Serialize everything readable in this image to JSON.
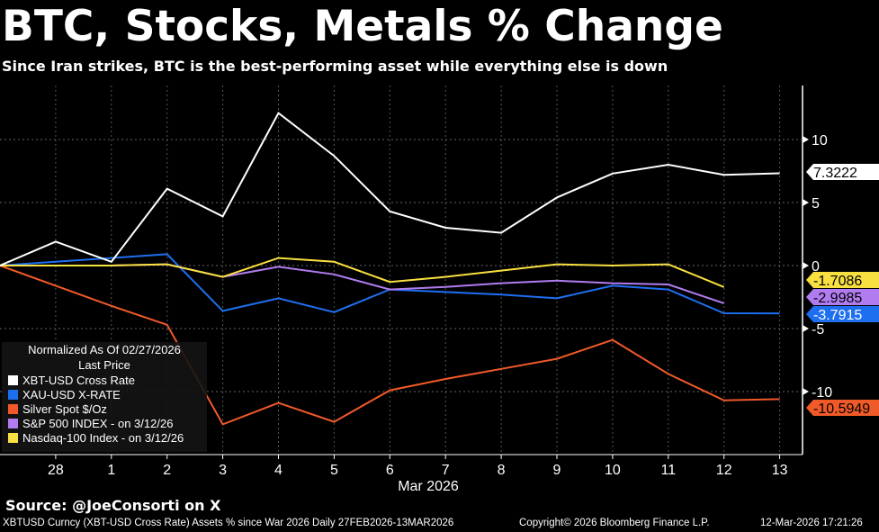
{
  "title": "BTC, Stocks, Metals % Change",
  "subtitle": "Since Iran strikes, BTC is the best-performing asset while everything else is down",
  "source": "Source: @JoeConsorti on X",
  "footer": {
    "left": "XBTUSD Curncy (XBT-USD Cross Rate) Assets % since War 2026 Daily 27FEB2026-13MAR2026",
    "copyright": "Copyright© 2026 Bloomberg Finance L.P.",
    "timestamp": "12-Mar-2026 17:21:26"
  },
  "legend": {
    "header1": "Normalized As Of 02/27/2026",
    "header2": "Last Price"
  },
  "chart_data": {
    "type": "line",
    "x": [
      "27",
      "28",
      "1",
      "2",
      "3",
      "4",
      "5",
      "6",
      "7",
      "8",
      "9",
      "10",
      "11",
      "12",
      "13"
    ],
    "x_tick_labels": [
      "28",
      "1",
      "2",
      "3",
      "4",
      "5",
      "6",
      "7",
      "8",
      "9",
      "10",
      "11",
      "12",
      "13"
    ],
    "xlabel": "Mar 2026",
    "ylim": [
      -15,
      13
    ],
    "y_ticks": [
      10,
      5,
      0,
      -5,
      -10
    ],
    "grid": true,
    "legend_position": "bottom-left",
    "series": [
      {
        "name": "XBT-USD Cross Rate",
        "color": "#ffffff",
        "last_label": "7.3222",
        "values": [
          0,
          1.9,
          0.3,
          6.1,
          3.9,
          12.1,
          8.7,
          4.3,
          3.0,
          2.6,
          5.4,
          7.3,
          8.0,
          7.2,
          7.3222
        ]
      },
      {
        "name": "XAU-USD X-RATE",
        "color": "#1e6ff0",
        "last_label": "-3.7915",
        "values": [
          0,
          0.3,
          0.6,
          0.9,
          -3.6,
          -2.6,
          -3.7,
          -1.9,
          -2.1,
          -2.3,
          -2.6,
          -1.6,
          -1.9,
          -3.79,
          -3.7915
        ]
      },
      {
        "name": "Silver Spot $/Oz",
        "color": "#f05a28",
        "last_label": "-10.5949",
        "values": [
          0,
          -1.6,
          -3.2,
          -4.7,
          -12.6,
          -10.9,
          -12.4,
          -9.9,
          -9.0,
          -8.2,
          -7.4,
          -5.9,
          -8.6,
          -10.7,
          -10.5949
        ]
      },
      {
        "name": "S&P 500 INDEX -  on 3/12/26",
        "color": "#b07cf0",
        "last_label": "-2.9985",
        "values": [
          0,
          0,
          0,
          0.1,
          -0.9,
          -0.1,
          -0.7,
          -1.9,
          -1.7,
          -1.4,
          -1.2,
          -1.4,
          -1.5,
          -2.9985,
          null
        ]
      },
      {
        "name": "Nasdaq-100 Index -  on 3/12/26",
        "color": "#f8e040",
        "last_label": "-1.7086",
        "values": [
          0,
          0,
          0,
          0.1,
          -0.9,
          0.6,
          0.3,
          -1.3,
          -0.9,
          -0.4,
          0.1,
          0.0,
          0.1,
          -1.7086,
          null
        ]
      }
    ]
  }
}
